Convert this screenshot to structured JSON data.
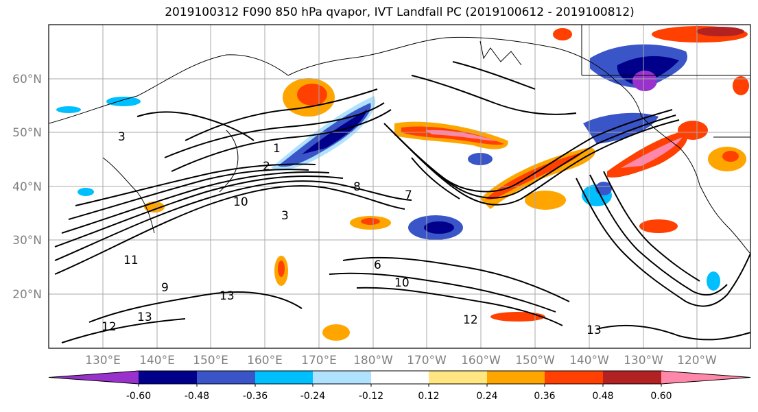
{
  "title": "2019100312 F090 850 hPa qvapor, IVT Landfall PC (2019100612 - 2019100812)",
  "map": {
    "lon_labels": [
      "130°E",
      "140°E",
      "150°E",
      "160°E",
      "170°E",
      "180°W",
      "170°W",
      "160°W",
      "150°W",
      "140°W",
      "130°W",
      "120°W"
    ],
    "lat_labels": [
      "60°N",
      "50°N",
      "40°N",
      "30°N",
      "20°N"
    ],
    "label_color": "#808080",
    "contour_labels": [
      "1",
      "2",
      "3",
      "3",
      "6",
      "7",
      "8",
      "9",
      "10",
      "10",
      "11",
      "12",
      "12",
      "13",
      "13",
      "13"
    ]
  },
  "colorbar": {
    "colors": [
      "#9932cc",
      "#00008b",
      "#3a55c8",
      "#00bfff",
      "#b0e2ff",
      "#ffffff",
      "#ffe680",
      "#ffa500",
      "#ff4000",
      "#b22222",
      "#ff88aa"
    ],
    "tick_labels": [
      "-0.60",
      "-0.48",
      "-0.36",
      "-0.24",
      "-0.12",
      "0.12",
      "0.24",
      "0.36",
      "0.48",
      "0.60"
    ]
  }
}
